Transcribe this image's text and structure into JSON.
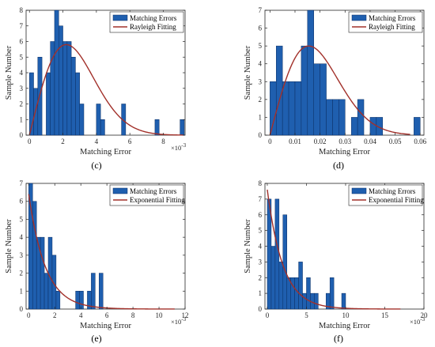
{
  "chart_data": [
    {
      "type": "bar",
      "caption": "(c)",
      "xlabel": "Matching Error",
      "ylabel": "Sample Number",
      "x_multiplier": "×10",
      "x_multiplier_exp": "-3",
      "xlim": [
        -0.2,
        9.3
      ],
      "ylim": [
        0,
        8
      ],
      "xticks": [
        "0",
        "2",
        "4",
        "6",
        "8"
      ],
      "yticks": [
        "0",
        "1",
        "2",
        "3",
        "4",
        "5",
        "6",
        "7",
        "8"
      ],
      "bin_width": 0.25,
      "bins": [
        {
          "x": 0,
          "y": 4
        },
        {
          "x": 0.25,
          "y": 3
        },
        {
          "x": 0.5,
          "y": 5
        },
        {
          "x": 1.0,
          "y": 4
        },
        {
          "x": 1.25,
          "y": 6
        },
        {
          "x": 1.5,
          "y": 8
        },
        {
          "x": 1.75,
          "y": 7
        },
        {
          "x": 2.0,
          "y": 6
        },
        {
          "x": 2.25,
          "y": 6
        },
        {
          "x": 2.5,
          "y": 5
        },
        {
          "x": 2.75,
          "y": 4
        },
        {
          "x": 3.0,
          "y": 2
        },
        {
          "x": 4.0,
          "y": 2
        },
        {
          "x": 4.25,
          "y": 1
        },
        {
          "x": 5.5,
          "y": 2
        },
        {
          "x": 7.5,
          "y": 1
        },
        {
          "x": 9.0,
          "y": 1
        }
      ],
      "fit": {
        "kind": "rayleigh",
        "sigma": 2.2,
        "peak_y": 5.8,
        "x_end": 9.2
      },
      "series": [
        {
          "name": "Matching Errors",
          "color": "#1F5FAF"
        },
        {
          "name": "Rayleigh Fitting",
          "color": "#A2302A"
        }
      ]
    },
    {
      "type": "bar",
      "caption": "(d)",
      "xlabel": "Matching Error",
      "ylabel": "Sample Number",
      "xlim": [
        -0.002,
        0.0615
      ],
      "ylim": [
        0,
        7
      ],
      "xticks": [
        "0",
        "0.01",
        "0.02",
        "0.03",
        "0.04",
        "0.05",
        "0.06"
      ],
      "yticks": [
        "0",
        "1",
        "2",
        "3",
        "4",
        "5",
        "6",
        "7"
      ],
      "bin_width": 0.0025,
      "bins": [
        {
          "x": 0,
          "y": 3
        },
        {
          "x": 0.0025,
          "y": 5
        },
        {
          "x": 0.005,
          "y": 3
        },
        {
          "x": 0.0075,
          "y": 3
        },
        {
          "x": 0.01,
          "y": 3
        },
        {
          "x": 0.0125,
          "y": 5
        },
        {
          "x": 0.015,
          "y": 7
        },
        {
          "x": 0.0175,
          "y": 4
        },
        {
          "x": 0.02,
          "y": 4
        },
        {
          "x": 0.0225,
          "y": 2
        },
        {
          "x": 0.025,
          "y": 2
        },
        {
          "x": 0.0275,
          "y": 2
        },
        {
          "x": 0.0325,
          "y": 1
        },
        {
          "x": 0.035,
          "y": 2
        },
        {
          "x": 0.04,
          "y": 1
        },
        {
          "x": 0.0425,
          "y": 1
        },
        {
          "x": 0.0575,
          "y": 1
        }
      ],
      "fit": {
        "kind": "rayleigh",
        "sigma": 0.0155,
        "peak_y": 5.0,
        "x_end": 0.056
      },
      "series": [
        {
          "name": "Matching Errors",
          "color": "#1F5FAF"
        },
        {
          "name": "Rayleigh Fitting",
          "color": "#A2302A"
        }
      ]
    },
    {
      "type": "bar",
      "caption": "(e)",
      "xlabel": "Matching Error",
      "ylabel": "Sample Number",
      "x_multiplier": "×10",
      "x_multiplier_exp": "-3",
      "xlim": [
        -0.2,
        12
      ],
      "ylim": [
        0,
        7
      ],
      "xticks": [
        "0",
        "2",
        "4",
        "6",
        "8",
        "10",
        "12"
      ],
      "yticks": [
        "0",
        "1",
        "2",
        "3",
        "4",
        "5",
        "6",
        "7"
      ],
      "bin_width": 0.3,
      "bins": [
        {
          "x": 0,
          "y": 7
        },
        {
          "x": 0.3,
          "y": 6
        },
        {
          "x": 0.6,
          "y": 4
        },
        {
          "x": 0.9,
          "y": 4
        },
        {
          "x": 1.2,
          "y": 2
        },
        {
          "x": 1.5,
          "y": 4
        },
        {
          "x": 1.8,
          "y": 3
        },
        {
          "x": 2.1,
          "y": 1
        },
        {
          "x": 3.6,
          "y": 1
        },
        {
          "x": 3.9,
          "y": 1
        },
        {
          "x": 4.5,
          "y": 1
        },
        {
          "x": 4.8,
          "y": 2
        },
        {
          "x": 5.4,
          "y": 2
        }
      ],
      "fit": {
        "kind": "exponential",
        "y0": 6.4,
        "lambda": 0.78,
        "x_end": 11.2
      },
      "series": [
        {
          "name": "Matching Errors",
          "color": "#1F5FAF"
        },
        {
          "name": "Exponential Fitting",
          "color": "#A2302A"
        }
      ]
    },
    {
      "type": "bar",
      "caption": "(f)",
      "xlabel": "Matching Error",
      "ylabel": "Sample Number",
      "x_multiplier": "×10",
      "x_multiplier_exp": "-3",
      "xlim": [
        -0.3,
        20
      ],
      "ylim": [
        0,
        8
      ],
      "xticks": [
        "0",
        "5",
        "10",
        "15",
        "20"
      ],
      "yticks": [
        "0",
        "1",
        "2",
        "3",
        "4",
        "5",
        "6",
        "7",
        "8"
      ],
      "bin_width": 0.5,
      "bins": [
        {
          "x": 0,
          "y": 7
        },
        {
          "x": 0.5,
          "y": 4
        },
        {
          "x": 1.0,
          "y": 7
        },
        {
          "x": 1.5,
          "y": 3
        },
        {
          "x": 2.0,
          "y": 6
        },
        {
          "x": 2.5,
          "y": 2
        },
        {
          "x": 3.0,
          "y": 2
        },
        {
          "x": 3.5,
          "y": 2
        },
        {
          "x": 4.0,
          "y": 3
        },
        {
          "x": 4.5,
          "y": 1
        },
        {
          "x": 5.0,
          "y": 2
        },
        {
          "x": 5.5,
          "y": 1
        },
        {
          "x": 6.0,
          "y": 1
        },
        {
          "x": 7.5,
          "y": 1
        },
        {
          "x": 8.0,
          "y": 2
        },
        {
          "x": 9.5,
          "y": 1
        }
      ],
      "fit": {
        "kind": "exponential",
        "y0": 7.6,
        "lambda": 0.5,
        "x_end": 17
      },
      "series": [
        {
          "name": "Matching Errors",
          "color": "#1F5FAF"
        },
        {
          "name": "Exponential Fitting",
          "color": "#A2302A"
        }
      ]
    }
  ]
}
